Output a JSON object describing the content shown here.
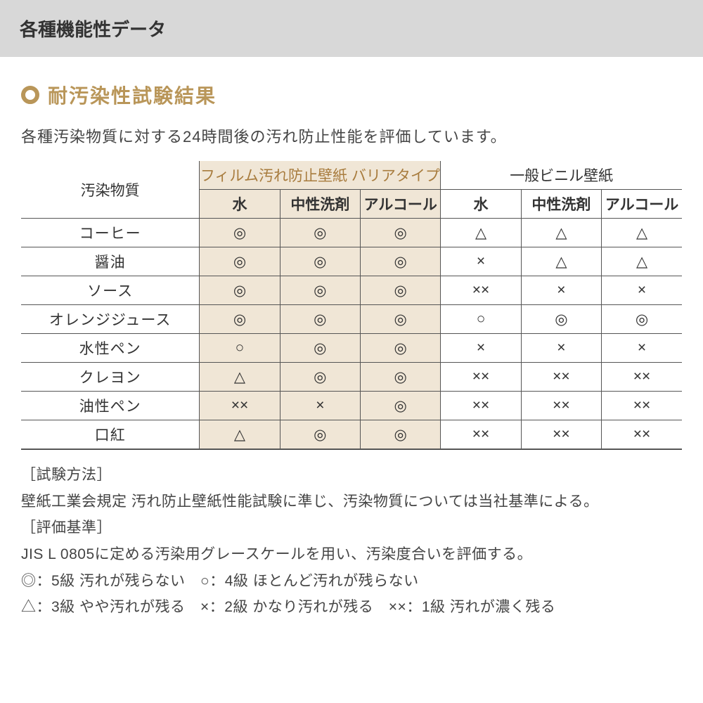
{
  "header": {
    "title": "各種機能性データ"
  },
  "section": {
    "bullet_color": "#b99659",
    "title": "耐汚染性試験結果",
    "description": "各種汚染物質に対する24時間後の汚れ防止性能を評価しています。"
  },
  "table": {
    "corner_label": "汚染物質",
    "group_a": {
      "title": "フィルム汚れ防止壁紙 バリアタイプ",
      "cols": [
        "水",
        "中性洗剤",
        "アルコール"
      ],
      "highlight_bg": "#f0e6d6",
      "title_color": "#a87c3e"
    },
    "group_b": {
      "title": "一般ビニル壁紙",
      "cols": [
        "水",
        "中性洗剤",
        "アルコール"
      ]
    },
    "rows": [
      {
        "label": "コーヒー",
        "a": [
          "◎",
          "◎",
          "◎"
        ],
        "b": [
          "△",
          "△",
          "△"
        ]
      },
      {
        "label": "醤油",
        "a": [
          "◎",
          "◎",
          "◎"
        ],
        "b": [
          "×",
          "△",
          "△"
        ]
      },
      {
        "label": "ソース",
        "a": [
          "◎",
          "◎",
          "◎"
        ],
        "b": [
          "××",
          "×",
          "×"
        ]
      },
      {
        "label": "オレンジジュース",
        "a": [
          "◎",
          "◎",
          "◎"
        ],
        "b": [
          "○",
          "◎",
          "◎"
        ]
      },
      {
        "label": "水性ペン",
        "a": [
          "○",
          "◎",
          "◎"
        ],
        "b": [
          "×",
          "×",
          "×"
        ]
      },
      {
        "label": "クレヨン",
        "a": [
          "△",
          "◎",
          "◎"
        ],
        "b": [
          "××",
          "××",
          "××"
        ]
      },
      {
        "label": "油性ペン",
        "a": [
          "××",
          "×",
          "◎"
        ],
        "b": [
          "××",
          "××",
          "××"
        ]
      },
      {
        "label": "口紅",
        "a": [
          "△",
          "◎",
          "◎"
        ],
        "b": [
          "××",
          "××",
          "××"
        ]
      }
    ]
  },
  "notes": {
    "method_label": "［試験方法］",
    "method_text": "壁紙工業会規定 汚れ防止壁紙性能試験に準じ、汚染物質については当社基準による。",
    "criteria_label": "［評価基準］",
    "criteria_text": "JIS L 0805に定める汚染用グレースケールを用い、汚染度合いを評価する。",
    "legend1": "◎：5級 汚れが残らない　○：4級 ほとんど汚れが残らない",
    "legend2": "△：3級 やや汚れが残る　×：2級 かなり汚れが残る　××：1級 汚れが濃く残る"
  },
  "colors": {
    "header_bg": "#d8d8d8",
    "border": "#555555",
    "text": "#333333"
  }
}
